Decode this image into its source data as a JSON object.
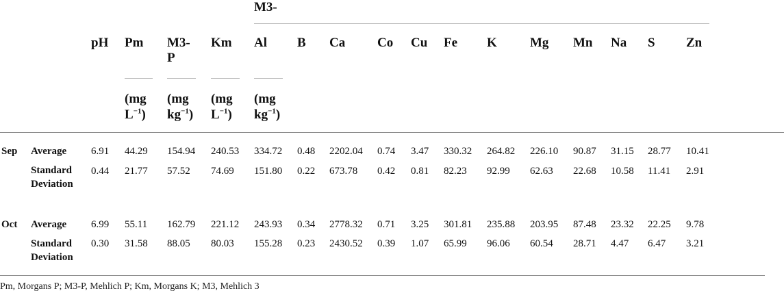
{
  "header": {
    "m3_group": "M3-",
    "columns": [
      "pH",
      "Pm",
      "M3-",
      "Km",
      "Al",
      "B",
      "Ca",
      "Co",
      "Cu",
      "Fe",
      "K",
      "Mg",
      "Mn",
      "Na",
      "S",
      "Zn"
    ],
    "m3p_second_line": "P",
    "units": {
      "pm": {
        "line1": "(mg",
        "line2_base": "L",
        "line2_sup": "−1",
        "line2_end": ")"
      },
      "m3p": {
        "line1": "(mg",
        "line2_base": "kg",
        "line2_sup": "−1",
        "line2_end": ")"
      },
      "km": {
        "line1": "(mg",
        "line2_base": "L",
        "line2_sup": "−1",
        "line2_end": ")"
      },
      "al": {
        "line1": "(mg",
        "line2_base": "kg",
        "line2_sup": "−1",
        "line2_end": ")"
      }
    }
  },
  "groups": [
    {
      "month": "Sep",
      "rows": [
        {
          "label": [
            "Average"
          ],
          "values": [
            "6.91",
            "44.29",
            "154.94",
            "240.53",
            "334.72",
            "0.48",
            "2202.04",
            "0.74",
            "3.47",
            "330.32",
            "264.82",
            "226.10",
            "90.87",
            "31.15",
            "28.77",
            "10.41"
          ]
        },
        {
          "label": [
            "Standard",
            "Deviation"
          ],
          "values": [
            "0.44",
            "21.77",
            "57.52",
            "74.69",
            "151.80",
            "0.22",
            "673.78",
            "0.42",
            "0.81",
            "82.23",
            "92.99",
            "62.63",
            "22.68",
            "10.58",
            "11.41",
            "2.91"
          ]
        }
      ]
    },
    {
      "month": "Oct",
      "rows": [
        {
          "label": [
            "Average"
          ],
          "values": [
            "6.99",
            "55.11",
            "162.79",
            "221.12",
            "243.93",
            "0.34",
            "2778.32",
            "0.71",
            "3.25",
            "301.81",
            "235.88",
            "203.95",
            "87.48",
            "23.32",
            "22.25",
            "9.78"
          ]
        },
        {
          "label": [
            "Standard",
            "Deviation"
          ],
          "values": [
            "0.30",
            "31.58",
            "88.05",
            "80.03",
            "155.28",
            "0.23",
            "2430.52",
            "0.39",
            "1.07",
            "65.99",
            "96.06",
            "60.54",
            "28.71",
            "4.47",
            "6.47",
            "3.21"
          ]
        }
      ]
    }
  ],
  "footnote": "Pm, Morgans P; M3-P, Mehlich P; Km, Morgans K; M3, Mehlich 3"
}
